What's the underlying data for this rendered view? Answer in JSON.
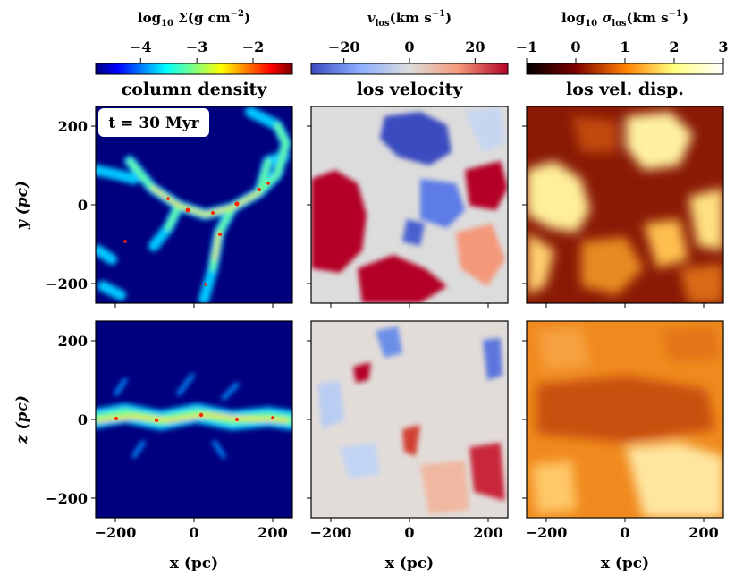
{
  "figure": {
    "time_label": "t = 30 Myr",
    "x_axis_label": "x (pc)",
    "row_labels": [
      "y (pc)",
      "z (pc)"
    ]
  },
  "colorbars": [
    {
      "label_parts": [
        "log",
        "10",
        " Σ(g cm",
        "−2",
        ")"
      ],
      "ticks": [
        -4,
        -3,
        -2
      ],
      "tick_labels": [
        "−4",
        "−3",
        "−2"
      ],
      "range": [
        -4.8,
        -1.3
      ],
      "colormap": "jet",
      "title": "column density"
    },
    {
      "label_parts": [
        "v",
        "los",
        "(km s",
        "−1",
        ")"
      ],
      "ticks": [
        -20,
        0,
        20
      ],
      "tick_labels": [
        "−20",
        "0",
        "20"
      ],
      "range": [
        -30,
        30
      ],
      "colormap": "coolwarm",
      "title": "los velocity"
    },
    {
      "label_parts": [
        "log",
        "10",
        " σ",
        "los",
        "(km s",
        "−1",
        ")"
      ],
      "ticks": [
        -1,
        0,
        1,
        2,
        3
      ],
      "tick_labels": [
        "−1",
        "0",
        "1",
        "2",
        "3"
      ],
      "range": [
        -1,
        3
      ],
      "colormap": "afmhot",
      "title": "los vel. disp."
    }
  ],
  "axes": {
    "x_ticks": [
      -200,
      0,
      200
    ],
    "x_tick_labels": [
      "−200",
      "0",
      "200"
    ],
    "y_ticks": [
      -200,
      0,
      200
    ],
    "y_tick_labels": [
      "−200",
      "0",
      "200"
    ],
    "x_range": [
      -250,
      250
    ],
    "y_range": [
      -250,
      250
    ]
  },
  "chart_data": {
    "type": "heatmap",
    "panels": [
      {
        "row": 0,
        "col": 0,
        "quantity": "column density",
        "projection": "x-y"
      },
      {
        "row": 0,
        "col": 1,
        "quantity": "los velocity",
        "projection": "x-y"
      },
      {
        "row": 0,
        "col": 2,
        "quantity": "los vel. disp.",
        "projection": "x-y"
      },
      {
        "row": 1,
        "col": 0,
        "quantity": "column density",
        "projection": "x-z"
      },
      {
        "row": 1,
        "col": 1,
        "quantity": "los velocity",
        "projection": "x-z"
      },
      {
        "row": 1,
        "col": 2,
        "quantity": "los vel. disp.",
        "projection": "x-z"
      }
    ]
  }
}
